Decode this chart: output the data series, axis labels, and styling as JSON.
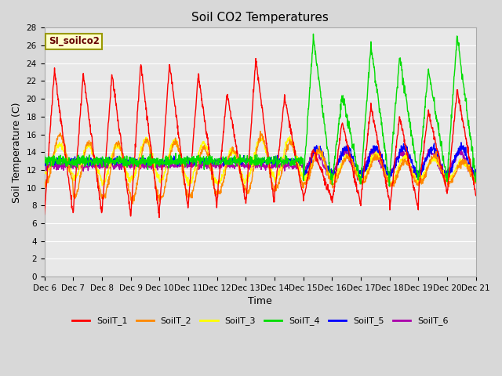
{
  "title": "Soil CO2 Temperatures",
  "xlabel": "Time",
  "ylabel": "Soil Temperature (C)",
  "ylim": [
    0,
    28
  ],
  "yticks": [
    0,
    2,
    4,
    6,
    8,
    10,
    12,
    14,
    16,
    18,
    20,
    22,
    24,
    26,
    28
  ],
  "num_days": 15,
  "sensor_colors": {
    "SoilT_1": "#ff0000",
    "SoilT_2": "#ff8800",
    "SoilT_3": "#ffff00",
    "SoilT_4": "#00dd00",
    "SoilT_5": "#0000ff",
    "SoilT_6": "#aa00aa"
  },
  "legend_label": "SI_soilco2",
  "legend_box_color": "#ffffcc",
  "legend_box_edge": "#999900",
  "background_color": "#d8d8d8",
  "plot_bg_color": "#e8e8e8",
  "x_tick_labels": [
    "Dec 6",
    "Dec 7",
    "Dec 8",
    "Dec 9",
    "Dec 10",
    "Dec 11",
    "Dec 12",
    "Dec 13",
    "Dec 14",
    "Dec 15",
    "Dec 16",
    "Dec 17",
    "Dec 18",
    "Dec 19",
    "Dec 20",
    "Dec 21"
  ],
  "line_width": 1.0,
  "title_fontsize": 11,
  "axis_label_fontsize": 9,
  "tick_fontsize": 7.5
}
